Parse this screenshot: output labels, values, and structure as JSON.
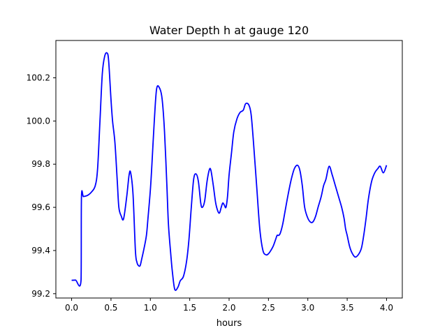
{
  "chart_data": {
    "type": "line",
    "title": "Water Depth h at gauge 120",
    "xlabel": "hours",
    "ylabel": "",
    "xlim": [
      -0.2,
      4.2
    ],
    "ylim": [
      99.18,
      100.373
    ],
    "xticks": [
      0.0,
      0.5,
      1.0,
      1.5,
      2.0,
      2.5,
      3.0,
      3.5,
      4.0
    ],
    "xtick_labels": [
      "0.0",
      "0.5",
      "1.0",
      "1.5",
      "2.0",
      "2.5",
      "3.0",
      "3.5",
      "4.0"
    ],
    "yticks": [
      99.2,
      99.4,
      99.6,
      99.8,
      100.0,
      100.2
    ],
    "ytick_labels": [
      "99.2",
      "99.4",
      "99.6",
      "99.8",
      "100.0",
      "100.2"
    ],
    "grid": false,
    "series": [
      {
        "color": "#0000ff",
        "x": [
          0.0,
          0.05,
          0.12,
          0.125,
          0.15,
          0.2,
          0.25,
          0.3,
          0.33,
          0.36,
          0.39,
          0.42,
          0.45,
          0.47,
          0.5,
          0.52,
          0.55,
          0.58,
          0.6,
          0.63,
          0.66,
          0.7,
          0.73,
          0.75,
          0.78,
          0.81,
          0.83,
          0.85,
          0.87,
          0.89,
          0.92,
          0.95,
          0.97,
          1.0,
          1.02,
          1.05,
          1.08,
          1.12,
          1.15,
          1.18,
          1.21,
          1.23,
          1.26,
          1.28,
          1.31,
          1.35,
          1.38,
          1.42,
          1.46,
          1.49,
          1.52,
          1.55,
          1.58,
          1.61,
          1.64,
          1.66,
          1.69,
          1.72,
          1.75,
          1.77,
          1.8,
          1.83,
          1.86,
          1.88,
          1.9,
          1.92,
          1.94,
          1.96,
          1.98,
          2.0,
          2.03,
          2.06,
          2.1,
          2.14,
          2.18,
          2.21,
          2.25,
          2.28,
          2.31,
          2.35,
          2.39,
          2.43,
          2.47,
          2.5,
          2.53,
          2.56,
          2.59,
          2.61,
          2.63,
          2.65,
          2.68,
          2.71,
          2.75,
          2.79,
          2.83,
          2.87,
          2.9,
          2.93,
          2.96,
          3.0,
          3.04,
          3.07,
          3.1,
          3.13,
          3.17,
          3.2,
          3.23,
          3.27,
          3.31,
          3.35,
          3.39,
          3.43,
          3.46,
          3.48,
          3.5,
          3.53,
          3.56,
          3.6,
          3.64,
          3.68,
          3.71,
          3.74,
          3.77,
          3.81,
          3.85,
          3.89,
          3.92,
          3.96,
          4.0
        ],
        "y": [
          99.262,
          99.263,
          99.264,
          99.648,
          99.65,
          99.655,
          99.67,
          99.7,
          99.78,
          100.0,
          100.22,
          100.3,
          100.315,
          100.28,
          100.1,
          100.0,
          99.9,
          99.72,
          99.6,
          99.56,
          99.547,
          99.65,
          99.75,
          99.76,
          99.66,
          99.4,
          99.345,
          99.33,
          99.33,
          99.36,
          99.41,
          99.47,
          99.55,
          99.68,
          99.8,
          100.0,
          100.15,
          100.15,
          100.1,
          99.95,
          99.7,
          99.52,
          99.38,
          99.3,
          99.22,
          99.23,
          99.26,
          99.28,
          99.35,
          99.45,
          99.6,
          99.73,
          99.755,
          99.72,
          99.62,
          99.6,
          99.63,
          99.72,
          99.775,
          99.77,
          99.7,
          99.62,
          99.58,
          99.575,
          99.6,
          99.62,
          99.61,
          99.6,
          99.65,
          99.75,
          99.85,
          99.95,
          100.01,
          100.04,
          100.05,
          100.08,
          100.075,
          100.03,
          99.9,
          99.7,
          99.5,
          99.4,
          99.38,
          99.385,
          99.4,
          99.42,
          99.45,
          99.47,
          99.47,
          99.48,
          99.52,
          99.58,
          99.66,
          99.73,
          99.78,
          99.795,
          99.77,
          99.7,
          99.6,
          99.55,
          99.53,
          99.535,
          99.56,
          99.6,
          99.65,
          99.7,
          99.73,
          99.79,
          99.75,
          99.7,
          99.65,
          99.6,
          99.55,
          99.5,
          99.47,
          99.42,
          99.39,
          99.37,
          99.38,
          99.41,
          99.47,
          99.55,
          99.64,
          99.72,
          99.76,
          99.78,
          99.79,
          99.76,
          99.795
        ]
      }
    ]
  }
}
